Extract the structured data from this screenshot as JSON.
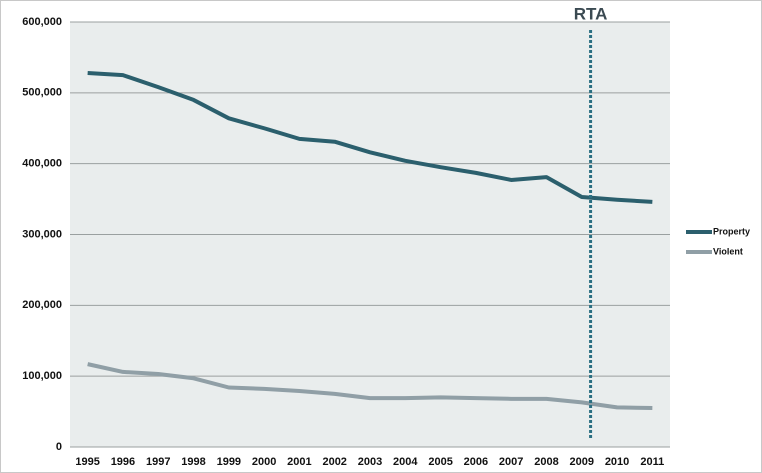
{
  "chart_data": {
    "type": "line",
    "categories": [
      "1995",
      "1996",
      "1997",
      "1998",
      "1999",
      "2000",
      "2001",
      "2002",
      "2003",
      "2004",
      "2005",
      "2006",
      "2007",
      "2008",
      "2009",
      "2010",
      "2011"
    ],
    "series": [
      {
        "name": "Property",
        "color": "#2b5f6d",
        "values": [
          528000,
          525000,
          508000,
          490000,
          464000,
          450000,
          435000,
          431000,
          416000,
          404000,
          395000,
          387000,
          377000,
          381000,
          353000,
          349000,
          346000
        ]
      },
      {
        "name": "Violent",
        "color": "#909fa6",
        "values": [
          117000,
          106000,
          103000,
          97000,
          84000,
          82000,
          79000,
          75000,
          69000,
          69000,
          70000,
          69000,
          68000,
          68000,
          63000,
          56000,
          55000
        ]
      }
    ],
    "ylim": [
      0,
      600000
    ],
    "yticks": [
      0,
      {
        "value": 100000,
        "label": "100,000"
      },
      {
        "value": 200000,
        "label": "200,000"
      },
      {
        "value": 300000,
        "label": "300,000"
      },
      {
        "value": 400000,
        "label": "400,000"
      },
      {
        "value": 500000,
        "label": "500,000"
      },
      {
        "value": 600000,
        "label": "600,000"
      }
    ],
    "grid": true,
    "legend": "right",
    "annotation": {
      "text": "RTA",
      "at": "2009",
      "color": "#2a6f82"
    }
  }
}
